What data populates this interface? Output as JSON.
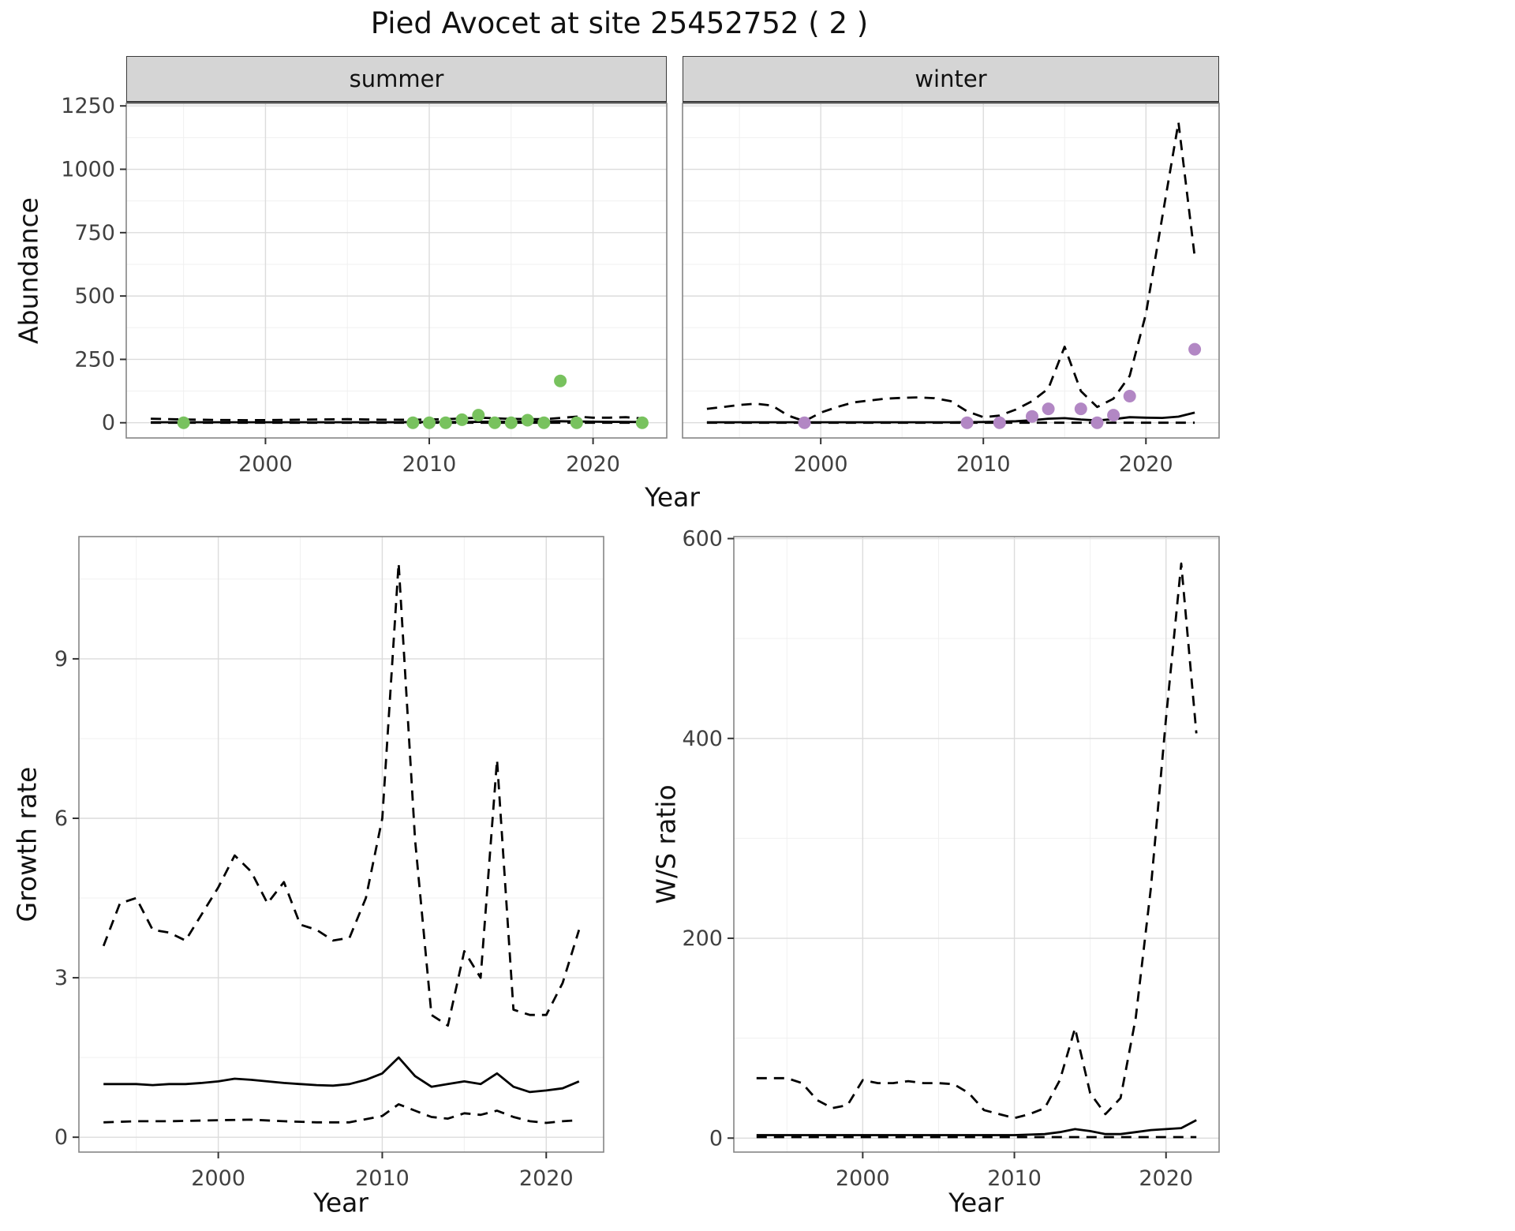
{
  "title": "Pied Avocet at site 25452752 ( 2 )",
  "axis_labels": {
    "abundance": "Abundance",
    "year": "Year",
    "growth_rate": "Growth rate",
    "ws_ratio": "W/S ratio"
  },
  "colors": {
    "summer_point": "#78c25e",
    "winter_point": "#b287c4",
    "line": "#000000",
    "strip_bg": "#d5d5d5",
    "grid_major": "#dcdcdc",
    "grid_minor": "#f0f0f0",
    "panel_border": "#858585"
  },
  "chart_data": [
    {
      "id": "abundance-summer",
      "type": "line",
      "facet_label": "summer",
      "xlabel": "Year",
      "ylabel": "Abundance",
      "xlim": [
        1991.5,
        2024.5
      ],
      "ylim": [
        -60,
        1260
      ],
      "xticks": [
        2000,
        2010,
        2020
      ],
      "yticks": [
        0,
        250,
        500,
        750,
        1000,
        1250
      ],
      "show_y_labels": true,
      "series": [
        {
          "name": "fit",
          "style": "solid",
          "x": [
            1993,
            1996,
            1999,
            2002,
            2005,
            2008,
            2010,
            2012,
            2014,
            2016,
            2018,
            2020,
            2023
          ],
          "y": [
            2,
            2,
            2,
            2,
            2,
            2,
            3,
            3,
            4,
            5,
            6,
            4,
            3
          ]
        },
        {
          "name": "upper_ci",
          "style": "dashed",
          "x": [
            1993,
            1995,
            1997,
            1999,
            2001,
            2003,
            2005,
            2007,
            2009,
            2011,
            2013,
            2015,
            2017,
            2018,
            2019,
            2020,
            2021,
            2022,
            2023
          ],
          "y": [
            16,
            13,
            11,
            10,
            11,
            13,
            14,
            12,
            12,
            14,
            20,
            15,
            14,
            19,
            24,
            20,
            20,
            22,
            17
          ]
        },
        {
          "name": "lower_ci",
          "style": "dashed",
          "x": [
            1993,
            1998,
            2003,
            2008,
            2013,
            2018,
            2023
          ],
          "y": [
            0,
            0,
            0,
            0,
            0,
            0,
            0
          ]
        }
      ],
      "points": {
        "name": "observed-abundance",
        "color": "#78c25e",
        "x": [
          1995,
          2009,
          2010,
          2011,
          2012,
          2013,
          2014,
          2015,
          2016,
          2017,
          2018,
          2019,
          2023
        ],
        "y": [
          0,
          0,
          0,
          0,
          12,
          30,
          0,
          0,
          10,
          0,
          165,
          0,
          0
        ]
      }
    },
    {
      "id": "abundance-winter",
      "type": "line",
      "facet_label": "winter",
      "xlabel": "Year",
      "ylabel": "Abundance",
      "xlim": [
        1991.5,
        2024.5
      ],
      "ylim": [
        -60,
        1260
      ],
      "xticks": [
        2000,
        2010,
        2020
      ],
      "yticks": [
        0,
        250,
        500,
        750,
        1000,
        1250
      ],
      "show_y_labels": false,
      "series": [
        {
          "name": "fit",
          "style": "solid",
          "x": [
            1993,
            1996,
            1999,
            2002,
            2005,
            2008,
            2010,
            2011,
            2012,
            2013,
            2014,
            2015,
            2016,
            2017,
            2018,
            2019,
            2020,
            2021,
            2022,
            2023
          ],
          "y": [
            2,
            2,
            2,
            2,
            2,
            2,
            3,
            4,
            6,
            10,
            16,
            18,
            13,
            9,
            14,
            22,
            20,
            19,
            24,
            40
          ]
        },
        {
          "name": "upper_ci",
          "style": "dashed",
          "x": [
            1993,
            1994,
            1995,
            1996,
            1997,
            1998,
            1999,
            2000,
            2001,
            2002,
            2003,
            2004,
            2005,
            2006,
            2007,
            2008,
            2009,
            2010,
            2011,
            2012,
            2013,
            2014,
            2015,
            2016,
            2017,
            2018,
            2019,
            2020,
            2021,
            2022,
            2023
          ],
          "y": [
            55,
            62,
            70,
            75,
            68,
            28,
            6,
            40,
            62,
            80,
            88,
            95,
            98,
            100,
            97,
            85,
            45,
            22,
            28,
            52,
            85,
            135,
            300,
            125,
            62,
            95,
            185,
            430,
            810,
            1185,
            655
          ]
        },
        {
          "name": "lower_ci",
          "style": "dashed",
          "x": [
            1993,
            1998,
            2003,
            2008,
            2013,
            2018,
            2023
          ],
          "y": [
            0,
            0,
            0,
            0,
            0,
            0,
            0
          ]
        }
      ],
      "points": {
        "name": "observed-abundance",
        "color": "#b287c4",
        "x": [
          1999,
          2009,
          2011,
          2013,
          2014,
          2016,
          2017,
          2018,
          2019,
          2023
        ],
        "y": [
          0,
          0,
          0,
          25,
          55,
          55,
          0,
          30,
          105,
          290
        ]
      }
    },
    {
      "id": "growth-rate",
      "type": "line",
      "facet_label": "",
      "xlabel": "Year",
      "ylabel": "Growth rate",
      "xlim": [
        1991.5,
        2023.5
      ],
      "ylim": [
        -0.28,
        11.3
      ],
      "xticks": [
        2000,
        2010,
        2020
      ],
      "yticks": [
        0,
        3,
        6,
        9
      ],
      "show_y_labels": true,
      "series": [
        {
          "name": "fit",
          "style": "solid",
          "x": [
            1993,
            1994,
            1995,
            1996,
            1997,
            1998,
            1999,
            2000,
            2001,
            2002,
            2003,
            2004,
            2005,
            2006,
            2007,
            2008,
            2009,
            2010,
            2011,
            2012,
            2013,
            2014,
            2015,
            2016,
            2017,
            2018,
            2019,
            2020,
            2021,
            2022
          ],
          "y": [
            1.0,
            1.0,
            1.0,
            0.98,
            1.0,
            1.0,
            1.02,
            1.05,
            1.1,
            1.08,
            1.05,
            1.02,
            1.0,
            0.98,
            0.97,
            1.0,
            1.08,
            1.2,
            1.5,
            1.15,
            0.95,
            1.0,
            1.05,
            1.0,
            1.2,
            0.95,
            0.85,
            0.88,
            0.92,
            1.05
          ]
        },
        {
          "name": "upper_ci",
          "style": "dashed",
          "x": [
            1993,
            1994,
            1995,
            1996,
            1997,
            1998,
            1999,
            2000,
            2001,
            2002,
            2003,
            2004,
            2005,
            2006,
            2007,
            2008,
            2009,
            2010,
            2011,
            2012,
            2013,
            2014,
            2015,
            2016,
            2017,
            2018,
            2019,
            2020,
            2021,
            2022
          ],
          "y": [
            3.6,
            4.4,
            4.5,
            3.9,
            3.85,
            3.7,
            4.2,
            4.7,
            5.3,
            5.0,
            4.4,
            4.8,
            4.0,
            3.9,
            3.7,
            3.75,
            4.5,
            6.0,
            10.8,
            5.6,
            2.3,
            2.1,
            3.5,
            3.0,
            7.1,
            2.4,
            2.3,
            2.3,
            2.9,
            3.9
          ]
        },
        {
          "name": "lower_ci",
          "style": "dashed",
          "x": [
            1993,
            1995,
            1997,
            2000,
            2002,
            2004,
            2006,
            2008,
            2010,
            2011,
            2012,
            2013,
            2014,
            2015,
            2016,
            2017,
            2018,
            2019,
            2020,
            2021,
            2022
          ],
          "y": [
            0.28,
            0.3,
            0.3,
            0.32,
            0.33,
            0.3,
            0.28,
            0.28,
            0.4,
            0.62,
            0.5,
            0.38,
            0.35,
            0.45,
            0.42,
            0.5,
            0.38,
            0.3,
            0.27,
            0.3,
            0.32
          ]
        }
      ]
    },
    {
      "id": "ws-ratio",
      "type": "line",
      "facet_label": "",
      "xlabel": "Year",
      "ylabel": "W/S ratio",
      "xlim": [
        1991.5,
        2023.5
      ],
      "ylim": [
        -14,
        602
      ],
      "xticks": [
        2000,
        2010,
        2020
      ],
      "yticks": [
        0,
        200,
        400,
        600
      ],
      "show_y_labels": true,
      "series": [
        {
          "name": "fit",
          "style": "solid",
          "x": [
            1993,
            1996,
            1999,
            2002,
            2005,
            2008,
            2010,
            2012,
            2013,
            2014,
            2015,
            2016,
            2017,
            2018,
            2019,
            2020,
            2021,
            2022
          ],
          "y": [
            3,
            3,
            3,
            3,
            3,
            3,
            3,
            4,
            6,
            9,
            7,
            4,
            4,
            6,
            8,
            9,
            10,
            18
          ]
        },
        {
          "name": "upper_ci",
          "style": "dashed",
          "x": [
            1993,
            1994,
            1995,
            1996,
            1997,
            1998,
            1999,
            2000,
            2001,
            2002,
            2003,
            2004,
            2005,
            2006,
            2007,
            2008,
            2009,
            2010,
            2011,
            2012,
            2013,
            2014,
            2015,
            2016,
            2017,
            2018,
            2019,
            2020,
            2021,
            2022
          ],
          "y": [
            60,
            60,
            60,
            55,
            38,
            30,
            33,
            58,
            55,
            55,
            57,
            55,
            55,
            54,
            45,
            28,
            24,
            20,
            24,
            30,
            58,
            110,
            45,
            24,
            40,
            120,
            250,
            420,
            575,
            405
          ]
        },
        {
          "name": "lower_ci",
          "style": "dashed",
          "x": [
            1993,
            1998,
            2003,
            2008,
            2013,
            2018,
            2022
          ],
          "y": [
            1,
            1,
            1,
            1,
            1,
            1,
            1
          ]
        }
      ]
    }
  ]
}
